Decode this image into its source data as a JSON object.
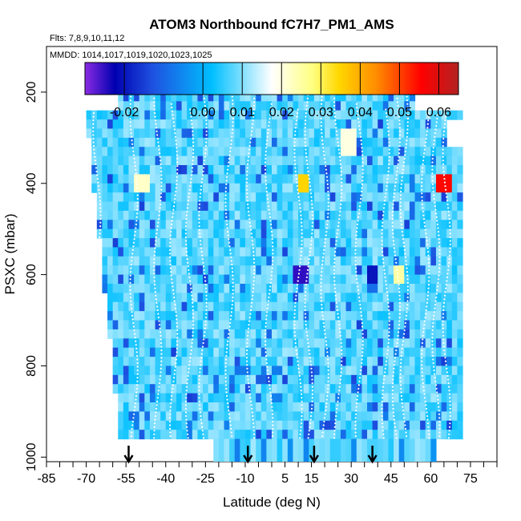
{
  "chart_data": {
    "type": "heatmap",
    "title": "ATOM3 Northbound fC7H7_PM1_AMS",
    "subtitle_flights": "Flts: 7,8,9,10,11,12",
    "subtitle_dates": "MMDD: 1014,1017,1019,1020,1023,1025",
    "xlabel": "Latitude (deg N)",
    "ylabel": "PSXC (mbar)",
    "xlim": [
      -85,
      85
    ],
    "ylim": [
      1010,
      100
    ],
    "x_ticks": [
      -85,
      -70,
      -55,
      -40,
      -25,
      -10,
      5,
      15,
      30,
      45,
      60,
      75
    ],
    "x_tick_labels": [
      "-85",
      "-70",
      "-55",
      "-40",
      "-25",
      "-10",
      "5",
      "15",
      "30",
      "45",
      "60",
      "75"
    ],
    "y_ticks": [
      200,
      400,
      600,
      800,
      1000
    ],
    "y_tick_labels": [
      "200",
      "400",
      "600",
      "800",
      "1000"
    ],
    "colorbar": {
      "range": [
        -0.03,
        0.065
      ],
      "ticks": [
        -0.02,
        0.0,
        0.01,
        0.02,
        0.03,
        0.04,
        0.05,
        0.06
      ],
      "tick_labels": [
        "-0.02",
        "0.00",
        "0.01",
        "0.02",
        "0.03",
        "0.04",
        "0.05",
        "0.06"
      ],
      "color_stops": [
        "#8a2be2",
        "#0000b0",
        "#1e50e0",
        "#00bfff",
        "#ffffff",
        "#ffff80",
        "#ffd700",
        "#ff8c00",
        "#ff0000",
        "#b22222"
      ]
    },
    "flight_markers_lat": [
      -54,
      -9,
      16,
      38
    ],
    "profile_columns": [
      {
        "lat_min": -72,
        "lat_max": 70,
        "p_top": 180,
        "p_bottom": 960
      },
      {
        "lat_min": -22,
        "lat_max": 62,
        "p_top": 960,
        "p_bottom": 1010
      }
    ],
    "notable_values": [
      {
        "lat": 11,
        "p": 390,
        "value": 0.035
      },
      {
        "lat": 64,
        "p": 390,
        "value": 0.055
      },
      {
        "lat": 10,
        "p": 590,
        "value": -0.025
      },
      {
        "lat": 37,
        "p": 590,
        "value": -0.02
      },
      {
        "lat": -50,
        "p": 395,
        "value": 0.022
      },
      {
        "lat": 28,
        "p": 300,
        "value": 0.02
      },
      {
        "lat": 47,
        "p": 590,
        "value": 0.025
      }
    ]
  }
}
